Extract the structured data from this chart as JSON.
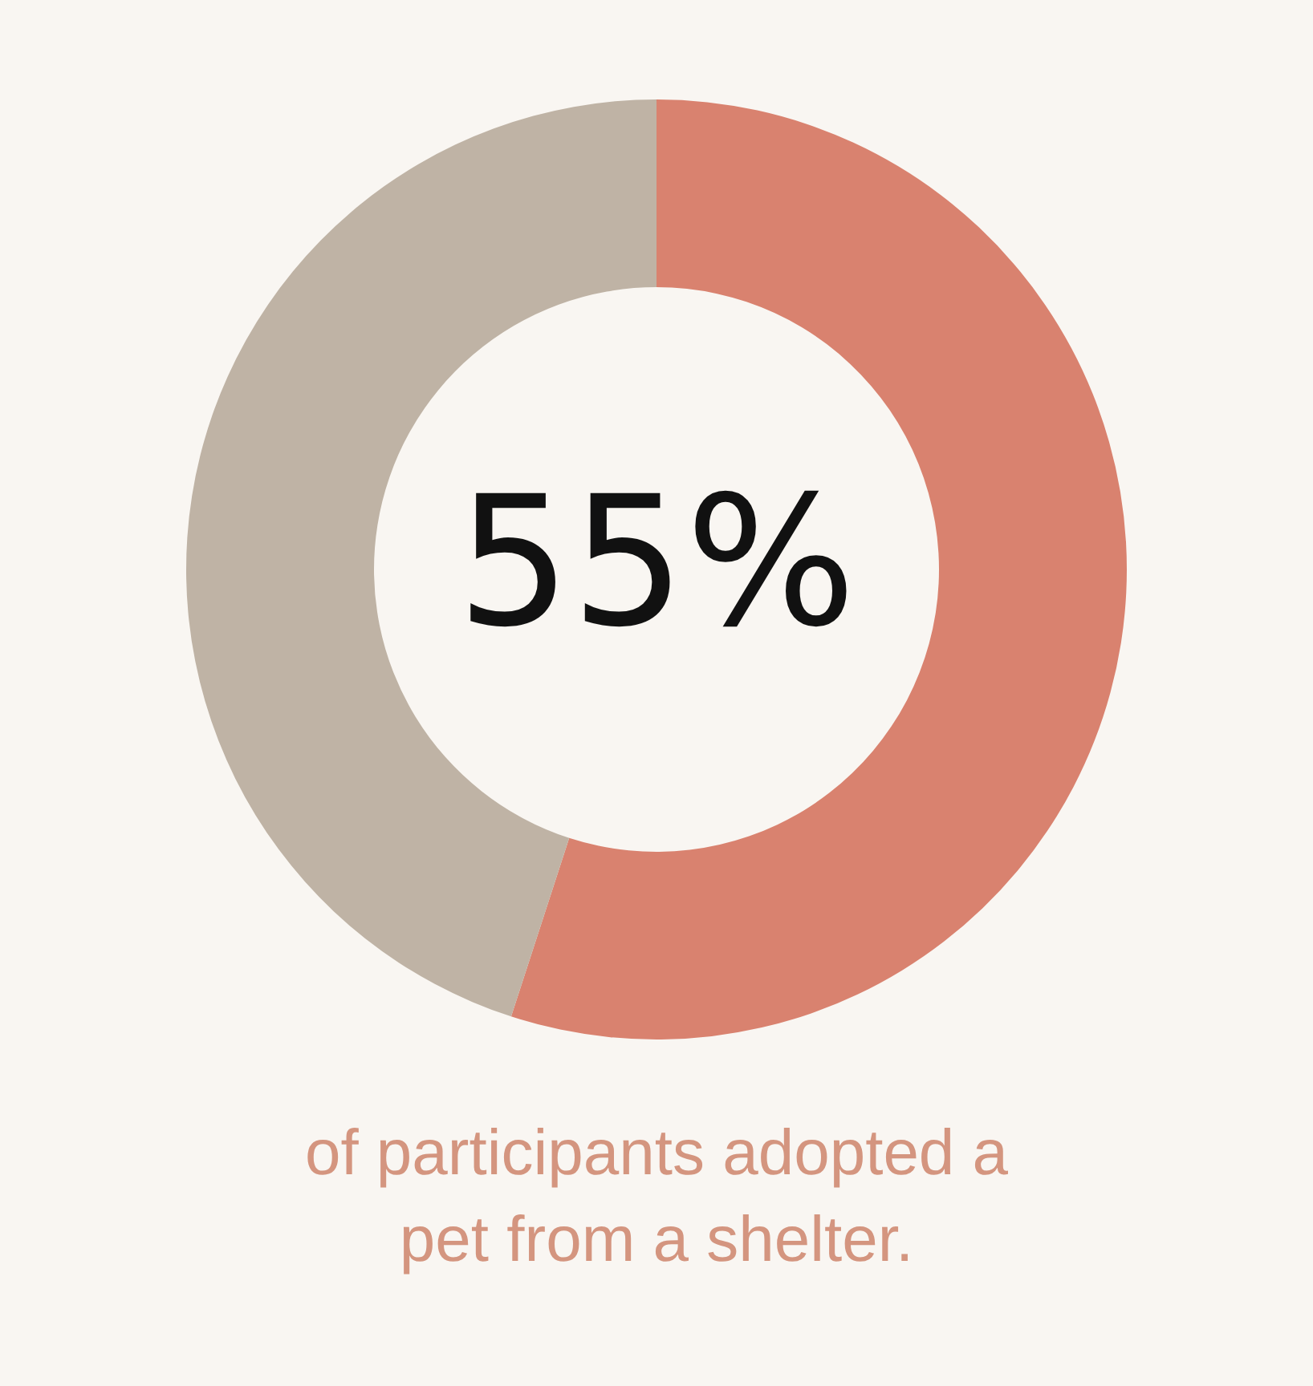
{
  "chart_data": {
    "type": "donut",
    "categories": [
      null,
      null
    ],
    "values": [
      55,
      45
    ],
    "colors": [
      "#d9826f",
      "#bfb3a5"
    ],
    "value_labels": [
      "55%",
      null
    ],
    "annotations": [
      "of participants adopted a pet from a shelter."
    ]
  }
}
